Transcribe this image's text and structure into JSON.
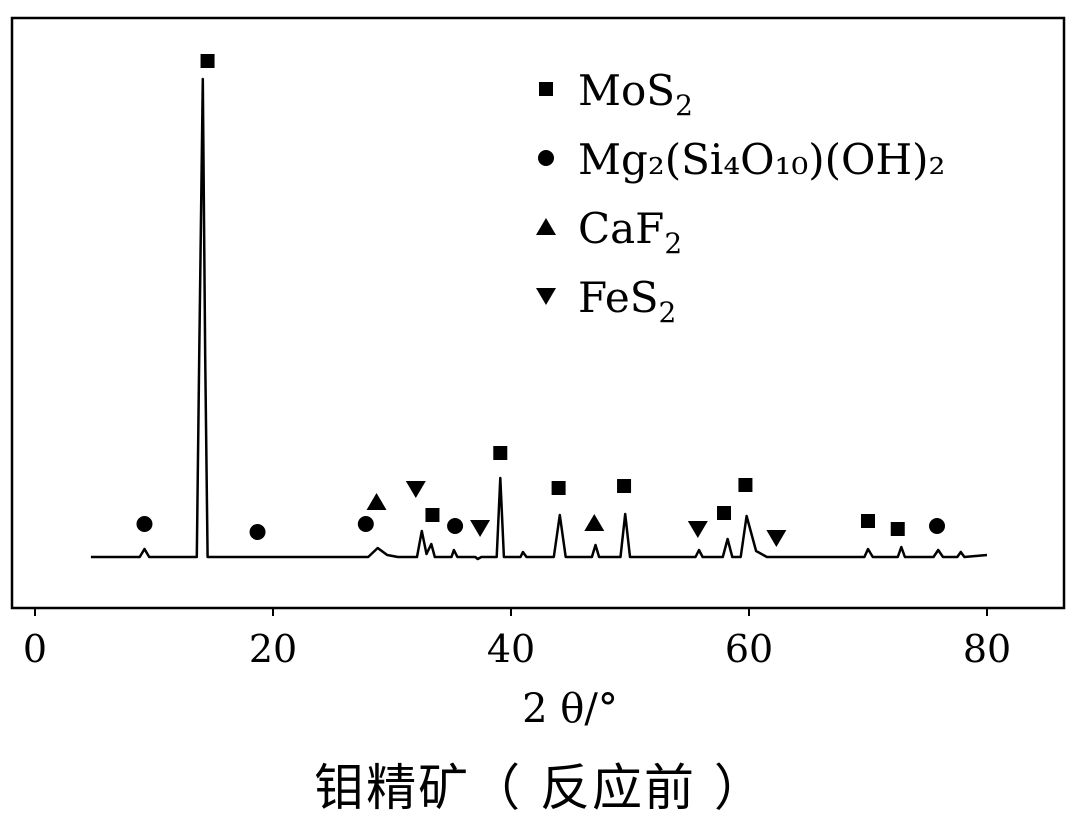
{
  "chart_data": {
    "type": "line",
    "xlabel": "2 θ/°",
    "ylabel": "",
    "xlim": [
      0,
      87
    ],
    "xticks": [
      0,
      20,
      40,
      60,
      80
    ],
    "grid": false,
    "legend_position": "top-right",
    "legend": [
      {
        "marker": "square",
        "label": "MoS",
        "sub": "2"
      },
      {
        "marker": "circle",
        "label": "Mg₂(Si₄O₁₀)(OH)₂",
        "sub": ""
      },
      {
        "marker": "triangle-up",
        "label": "CaF",
        "sub": "2"
      },
      {
        "marker": "triangle-down",
        "label": "FeS",
        "sub": "2"
      }
    ],
    "pattern": [
      [
        4.7,
        0
      ],
      [
        8.8,
        0
      ],
      [
        9.2,
        8
      ],
      [
        9.6,
        0
      ],
      [
        13.6,
        0
      ],
      [
        13.8,
        200
      ],
      [
        14.1,
        478
      ],
      [
        14.3,
        200
      ],
      [
        14.5,
        0
      ],
      [
        28,
        0
      ],
      [
        28.8,
        9
      ],
      [
        29.6,
        2
      ],
      [
        30.5,
        0
      ],
      [
        32.1,
        0
      ],
      [
        32.5,
        26
      ],
      [
        32.9,
        3
      ],
      [
        33.3,
        13
      ],
      [
        33.6,
        0
      ],
      [
        35.0,
        0
      ],
      [
        35.2,
        7
      ],
      [
        35.5,
        0
      ],
      [
        37.0,
        0
      ],
      [
        37.2,
        -2
      ],
      [
        37.5,
        0
      ],
      [
        38.8,
        0
      ],
      [
        39.1,
        79
      ],
      [
        39.4,
        0
      ],
      [
        40.8,
        0
      ],
      [
        41.0,
        5
      ],
      [
        41.3,
        0
      ],
      [
        43.6,
        0
      ],
      [
        44.1,
        42
      ],
      [
        44.6,
        0
      ],
      [
        46.8,
        0
      ],
      [
        47.1,
        12
      ],
      [
        47.4,
        0
      ],
      [
        49.2,
        0
      ],
      [
        49.6,
        43
      ],
      [
        50.0,
        0
      ],
      [
        55.5,
        0
      ],
      [
        55.8,
        7
      ],
      [
        56.1,
        0
      ],
      [
        57.8,
        0
      ],
      [
        58.2,
        18
      ],
      [
        58.6,
        0
      ],
      [
        59.3,
        0
      ],
      [
        59.8,
        41
      ],
      [
        60.6,
        6
      ],
      [
        61.5,
        0
      ],
      [
        69.7,
        0
      ],
      [
        70.0,
        8
      ],
      [
        70.4,
        0
      ],
      [
        72.5,
        0
      ],
      [
        72.8,
        10
      ],
      [
        73.1,
        0
      ],
      [
        75.5,
        0
      ],
      [
        75.9,
        7
      ],
      [
        76.3,
        0
      ],
      [
        77.5,
        0
      ],
      [
        77.8,
        5
      ],
      [
        78.1,
        0
      ],
      [
        80,
        2
      ]
    ],
    "peak_markers": [
      {
        "x": 9.2,
        "marker": "circle",
        "h": 33
      },
      {
        "x": 14.5,
        "marker": "square",
        "h": 496
      },
      {
        "x": 18.7,
        "marker": "circle",
        "h": 25
      },
      {
        "x": 27.8,
        "marker": "circle",
        "h": 33
      },
      {
        "x": 28.7,
        "marker": "triangle-up",
        "h": 55
      },
      {
        "x": 32.0,
        "marker": "triangle-down",
        "h": 68
      },
      {
        "x": 33.4,
        "marker": "square",
        "h": 42
      },
      {
        "x": 35.3,
        "marker": "circle",
        "h": 31
      },
      {
        "x": 37.4,
        "marker": "triangle-down",
        "h": 29
      },
      {
        "x": 39.1,
        "marker": "square",
        "h": 104
      },
      {
        "x": 44.0,
        "marker": "square",
        "h": 69
      },
      {
        "x": 47.0,
        "marker": "triangle-up",
        "h": 34
      },
      {
        "x": 49.5,
        "marker": "square",
        "h": 71
      },
      {
        "x": 55.7,
        "marker": "triangle-down",
        "h": 28
      },
      {
        "x": 57.9,
        "marker": "square",
        "h": 44
      },
      {
        "x": 59.7,
        "marker": "square",
        "h": 72
      },
      {
        "x": 62.3,
        "marker": "triangle-down",
        "h": 19
      },
      {
        "x": 70.0,
        "marker": "square",
        "h": 36
      },
      {
        "x": 72.5,
        "marker": "square",
        "h": 28
      },
      {
        "x": 75.8,
        "marker": "circle",
        "h": 31
      }
    ]
  },
  "caption": "钼精矿（ 反应前 ）"
}
